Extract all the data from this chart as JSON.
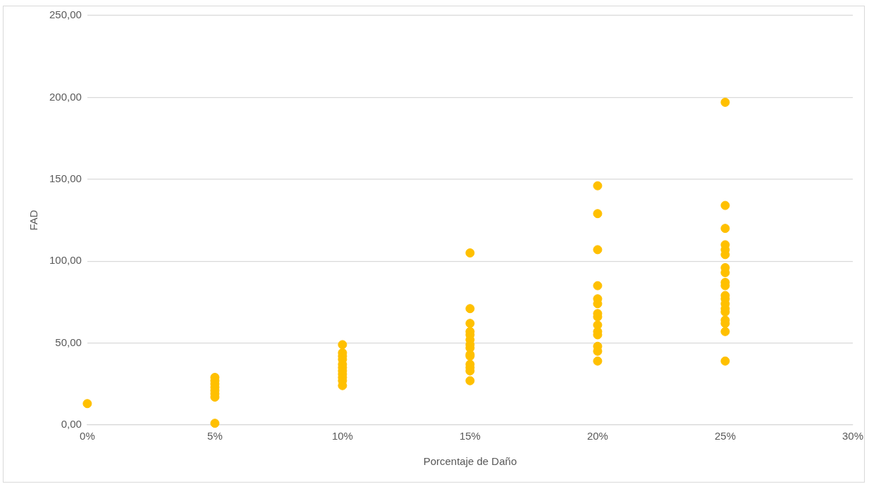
{
  "chart_data": {
    "type": "scatter",
    "xlabel": "Porcentaje de Daño",
    "ylabel": "FAD",
    "marker": "circle",
    "grid": "y",
    "legend": false,
    "xlim": [
      0,
      30
    ],
    "xticks": [
      {
        "value": 0,
        "label": "0%"
      },
      {
        "value": 5,
        "label": "5%"
      },
      {
        "value": 10,
        "label": "10%"
      },
      {
        "value": 15,
        "label": "15%"
      },
      {
        "value": 20,
        "label": "20%"
      },
      {
        "value": 25,
        "label": "25%"
      },
      {
        "value": 30,
        "label": "30%"
      }
    ],
    "ylim": [
      0,
      250
    ],
    "yticks": [
      {
        "value": 0,
        "label": "0,00"
      },
      {
        "value": 50,
        "label": "50,00"
      },
      {
        "value": 100,
        "label": "100,00"
      },
      {
        "value": 150,
        "label": "150,00"
      },
      {
        "value": 200,
        "label": "200,00"
      },
      {
        "value": 250,
        "label": "250,00"
      }
    ],
    "series": [
      {
        "color": "#ffc000",
        "x": [
          0,
          5,
          5,
          5,
          5,
          5,
          5,
          5,
          5,
          10,
          10,
          10,
          10,
          10,
          10,
          10,
          10,
          10,
          10,
          10,
          15,
          15,
          15,
          15,
          15,
          15,
          15,
          15,
          15,
          15,
          15,
          15,
          15,
          15,
          20,
          20,
          20,
          20,
          20,
          20,
          20,
          20,
          20,
          20,
          20,
          20,
          20,
          20,
          25,
          25,
          25,
          25,
          25,
          25,
          25,
          25,
          25,
          25,
          25,
          25,
          25,
          25,
          25,
          25,
          25,
          25,
          25
        ],
        "values": [
          13,
          29,
          27,
          25,
          23,
          21,
          19,
          17,
          1,
          49,
          44,
          42,
          40,
          37,
          35,
          33,
          31,
          29,
          27,
          24,
          105,
          71,
          62,
          57,
          55,
          52,
          49,
          47,
          43,
          42,
          37,
          35,
          33,
          27,
          146,
          129,
          107,
          85,
          77,
          74,
          68,
          66,
          61,
          57,
          55,
          48,
          45,
          39,
          197,
          134,
          120,
          110,
          107,
          104,
          96,
          93,
          87,
          85,
          79,
          77,
          74,
          71,
          69,
          64,
          62,
          57,
          39
        ]
      }
    ]
  }
}
